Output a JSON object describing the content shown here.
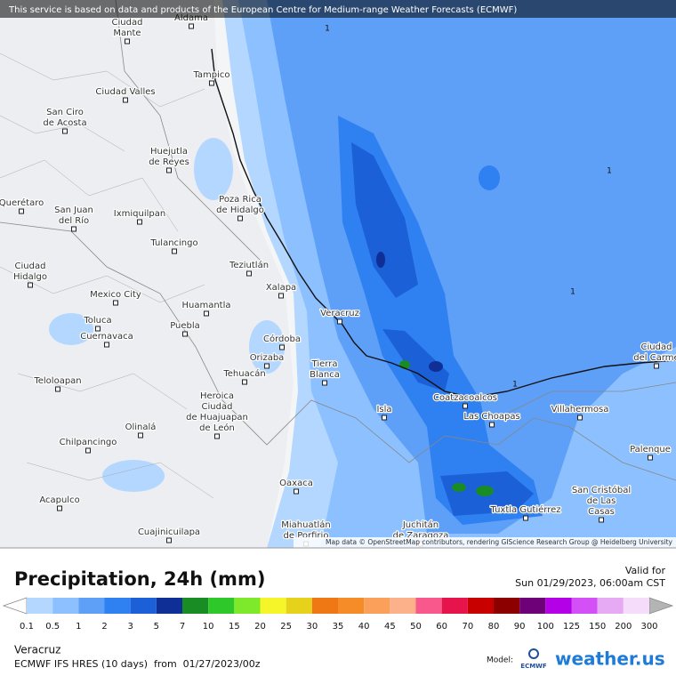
{
  "banner": "This service is based on data and products of the European Centre for Medium-range Weather Forecasts (ECMWF)",
  "attribution": "Map data © OpenStreetMap contributors, rendering GIScience Research Group @ Heidelberg University",
  "cities": [
    [
      "Aldama"
    ],
    [
      "Ciudad",
      "Mante"
    ],
    [
      "Tampico"
    ],
    [
      "Ciudad Valles"
    ],
    [
      "San Ciro",
      "de Acosta"
    ],
    [
      "Huejutla",
      "de Reyes"
    ],
    [
      "Poza Rica",
      "de Hidalgo"
    ],
    [
      "Querétaro"
    ],
    [
      "San Juan",
      "del Río"
    ],
    [
      "Ixmiquilpan"
    ],
    [
      "Tulancingo"
    ],
    [
      "Ciudad",
      "Hidalgo"
    ],
    [
      "Teziutlán"
    ],
    [
      "Xalapa"
    ],
    [
      "Mexico City"
    ],
    [
      "Huamantla"
    ],
    [
      "Veracruz"
    ],
    [
      "Toluca"
    ],
    [
      "Puebla"
    ],
    [
      "Cuernavaca"
    ],
    [
      "Córdoba"
    ],
    [
      "Orizaba"
    ],
    [
      "Tierra",
      "Blanca"
    ],
    [
      "Tehuacán"
    ],
    [
      "Teloloapan"
    ],
    [
      "Coatzacoalcos"
    ],
    [
      "Heroica",
      "Ciudad",
      "de Huajuapan",
      "de León"
    ],
    [
      "Villahermosa"
    ],
    [
      "Isla"
    ],
    [
      "Las Choapas"
    ],
    [
      "Olinalá"
    ],
    [
      "Ciudad",
      "del Carme"
    ],
    [
      "Palenque"
    ],
    [
      "Chilpancingo"
    ],
    [
      "Oaxaca"
    ],
    [
      "San Cristóbal",
      "de Las",
      "Casas"
    ],
    [
      "Acapulco"
    ],
    [
      "Tuxtla Gutiérrez"
    ],
    [
      "Juchitán",
      "de Zaragoza"
    ],
    [
      "Miahuatlán",
      "de Porfirio"
    ],
    [
      "Cuajinicuilapa"
    ]
  ],
  "contour_labels": [
    "1",
    "1",
    "1",
    "1"
  ],
  "legend": {
    "title": "Precipitation, 24h (mm)",
    "valid_label": "Valid for",
    "valid_time": "Sun 01/29/2023, 06:00am CST",
    "scale": {
      "labels": [
        0.1,
        0.5,
        1,
        2,
        3,
        5,
        7,
        10,
        15,
        20,
        25,
        30,
        35,
        40,
        45,
        50,
        60,
        70,
        80,
        90,
        100,
        125,
        150,
        200,
        300
      ],
      "colors": [
        "#b4d7ff",
        "#8cc0ff",
        "#5e9ff7",
        "#2f80f0",
        "#1b60d6",
        "#0f2f96",
        "#1a8c24",
        "#2ec82a",
        "#7ee82a",
        "#f5f52a",
        "#e6d21a",
        "#f07814",
        "#f58c28",
        "#fba05a",
        "#fcb18b",
        "#f8588c",
        "#e6144b",
        "#c80000",
        "#8c0000",
        "#6e0078",
        "#b400e6",
        "#d250f5",
        "#e6aaf5",
        "#f5dcfa"
      ],
      "below_color": "#ffffff",
      "above_color": "#b4b4b4"
    }
  },
  "footer": {
    "location": "Veracruz",
    "model_run": "ECMWF IFS HRES (10 days)  from  01/27/2023/00z",
    "model_label": "Model:",
    "model_logo": "ECMWF",
    "brand": "weather.us"
  }
}
